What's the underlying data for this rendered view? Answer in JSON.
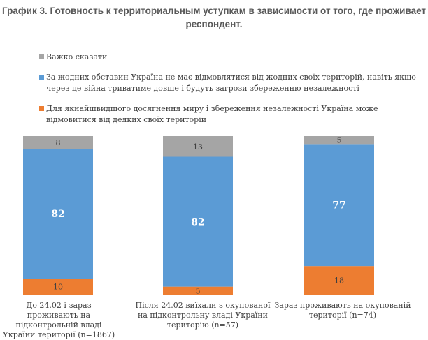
{
  "title": "График 3. Готовность к территориальным уступкам в зависимости от того, где проживает респондент.",
  "chart_data": {
    "type": "bar",
    "stacked": true,
    "categories": [
      "До 24.02 і зараз проживають на підконтрольній владі України території (n=1867)",
      "Після 24.02 виїхали з окупованої на підконтрольну владі України територію (n=57)",
      "Зараз проживають на окупованій території (n=74)"
    ],
    "series": [
      {
        "name": "Для якнайшвидшого досягнення миру і збереження незалежності Україна може відмовитися від деяких своїх територій",
        "color": "#ed7d31",
        "values": [
          10,
          5,
          18
        ]
      },
      {
        "name": "За жодних обставин Україна не має відмовлятися від жодних своїх територій, навіть якщо через це війна триватиме довше і будуть загрози збереженню незалежності",
        "color": "#5b9bd5",
        "values": [
          82,
          82,
          77
        ]
      },
      {
        "name": "Важко сказати",
        "color": "#a5a5a5",
        "values": [
          8,
          13,
          5
        ]
      }
    ],
    "legend_order": [
      2,
      1,
      0
    ],
    "legend_position": "top",
    "ylim": [
      0,
      100
    ]
  }
}
